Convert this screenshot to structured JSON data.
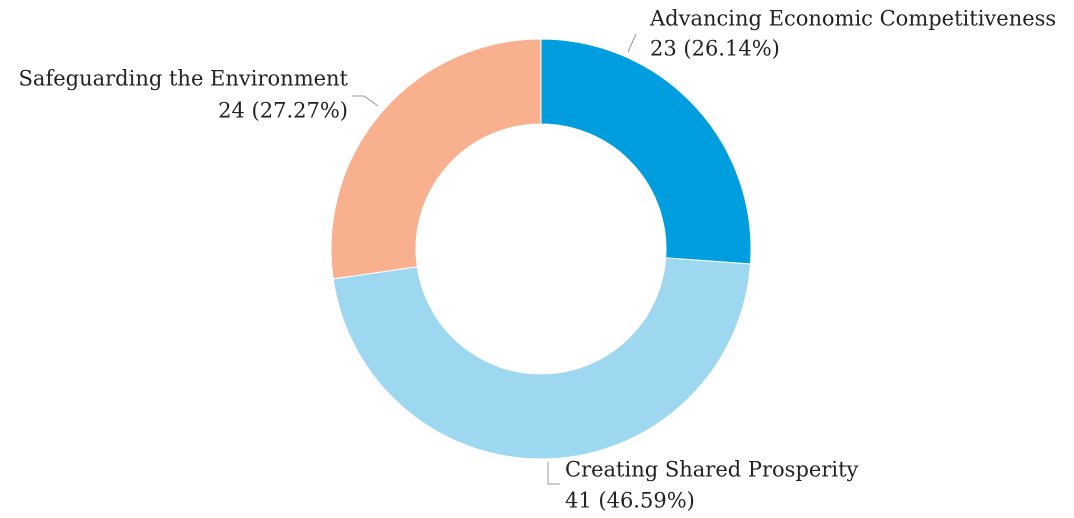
{
  "chart_data": {
    "type": "pie",
    "categories": [
      "Advancing Economic Competitiveness",
      "Creating Shared Prosperity",
      "Safeguarding the Environment"
    ],
    "values": [
      23,
      41,
      24
    ],
    "value_labels": [
      "23 (26.14%)",
      "41 (46.59%)",
      "24 (27.27%)"
    ],
    "colors": [
      "#009ddf",
      "#9dd8f0",
      "#f8b08e"
    ],
    "donut": true
  }
}
